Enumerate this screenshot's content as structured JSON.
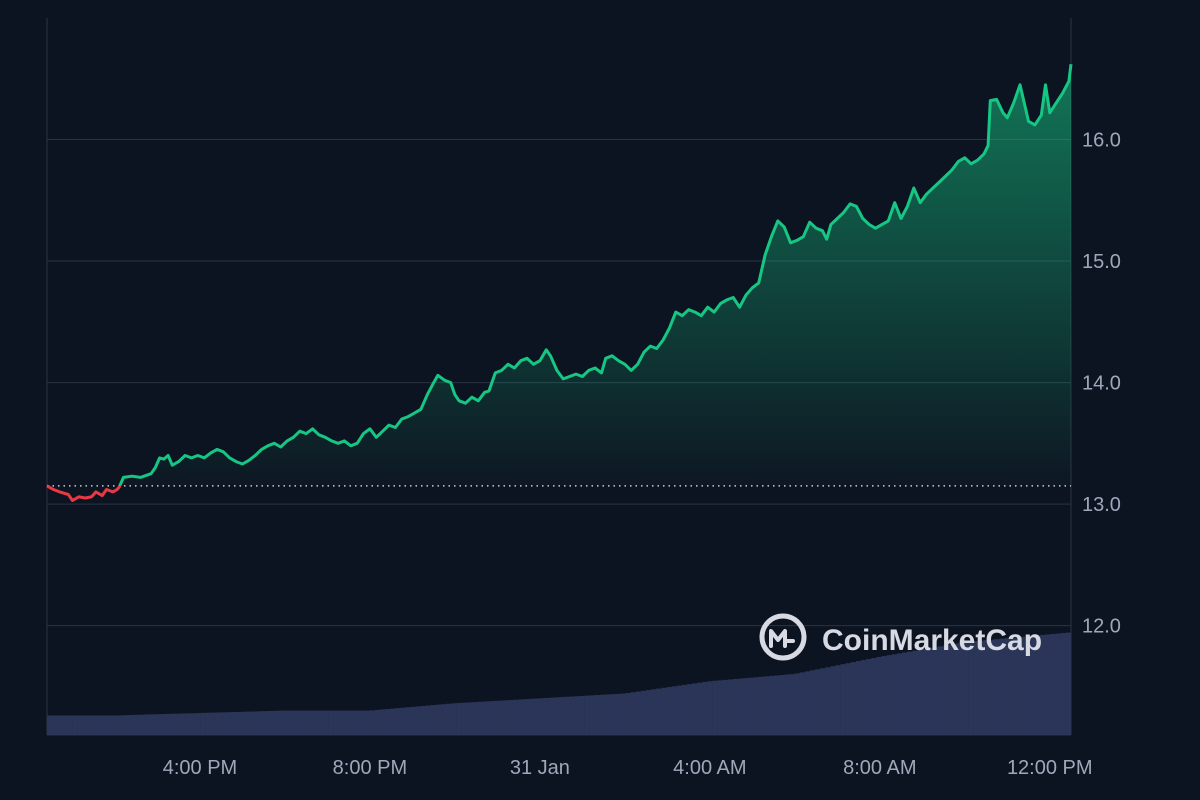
{
  "chart_data": {
    "type": "area",
    "price_axis": {
      "ticks": [
        12.0,
        13.0,
        14.0,
        15.0,
        16.0
      ],
      "tick_labels": [
        "12.0",
        "13.0",
        "14.0",
        "15.0",
        "16.0"
      ],
      "range": [
        11.1,
        17.0
      ],
      "position": "right"
    },
    "time_axis": {
      "labels": [
        "4:00 PM",
        "8:00 PM",
        "31 Jan",
        "4:00 AM",
        "8:00 AM",
        "12:00 PM"
      ],
      "label_hours": [
        4,
        8,
        12,
        16,
        20,
        24
      ],
      "range_hours": [
        0.4,
        24.5
      ]
    },
    "baseline": 13.15,
    "colors": {
      "up": "#16c784",
      "down": "#ea3943",
      "volume": "#2a3558",
      "background": "#0d1421",
      "grid": "#2b3245",
      "tick_text": "#a1a7bb"
    },
    "series": [
      {
        "values": [
          [
            0.4,
            13.15
          ],
          [
            0.55,
            13.12
          ],
          [
            0.7,
            13.1
          ],
          [
            0.9,
            13.08
          ],
          [
            1.0,
            13.03
          ],
          [
            1.15,
            13.06
          ],
          [
            1.3,
            13.05
          ],
          [
            1.45,
            13.06
          ],
          [
            1.55,
            13.1
          ],
          [
            1.7,
            13.07
          ],
          [
            1.8,
            13.12
          ],
          [
            1.95,
            13.1
          ],
          [
            2.05,
            13.12
          ],
          [
            2.1,
            13.14
          ],
          [
            2.2,
            13.22
          ],
          [
            2.4,
            13.23
          ],
          [
            2.6,
            13.22
          ],
          [
            2.85,
            13.25
          ],
          [
            2.95,
            13.3
          ],
          [
            3.05,
            13.38
          ],
          [
            3.15,
            13.37
          ],
          [
            3.25,
            13.4
          ],
          [
            3.35,
            13.32
          ],
          [
            3.5,
            13.35
          ],
          [
            3.65,
            13.4
          ],
          [
            3.8,
            13.38
          ],
          [
            3.95,
            13.4
          ],
          [
            4.1,
            13.38
          ],
          [
            4.25,
            13.42
          ],
          [
            4.4,
            13.45
          ],
          [
            4.55,
            13.43
          ],
          [
            4.7,
            13.38
          ],
          [
            4.85,
            13.35
          ],
          [
            5.0,
            13.33
          ],
          [
            5.15,
            13.36
          ],
          [
            5.3,
            13.4
          ],
          [
            5.45,
            13.45
          ],
          [
            5.6,
            13.48
          ],
          [
            5.75,
            13.5
          ],
          [
            5.9,
            13.47
          ],
          [
            6.05,
            13.52
          ],
          [
            6.2,
            13.55
          ],
          [
            6.35,
            13.6
          ],
          [
            6.5,
            13.58
          ],
          [
            6.65,
            13.62
          ],
          [
            6.8,
            13.57
          ],
          [
            6.95,
            13.55
          ],
          [
            7.1,
            13.52
          ],
          [
            7.25,
            13.5
          ],
          [
            7.4,
            13.52
          ],
          [
            7.55,
            13.48
          ],
          [
            7.7,
            13.5
          ],
          [
            7.85,
            13.58
          ],
          [
            8.0,
            13.62
          ],
          [
            8.15,
            13.55
          ],
          [
            8.3,
            13.6
          ],
          [
            8.45,
            13.65
          ],
          [
            8.6,
            13.63
          ],
          [
            8.75,
            13.7
          ],
          [
            8.9,
            13.72
          ],
          [
            9.05,
            13.75
          ],
          [
            9.2,
            13.78
          ],
          [
            9.35,
            13.9
          ],
          [
            9.5,
            14.0
          ],
          [
            9.6,
            14.06
          ],
          [
            9.75,
            14.02
          ],
          [
            9.9,
            14.0
          ],
          [
            10.0,
            13.9
          ],
          [
            10.1,
            13.85
          ],
          [
            10.25,
            13.83
          ],
          [
            10.4,
            13.88
          ],
          [
            10.55,
            13.85
          ],
          [
            10.7,
            13.92
          ],
          [
            10.8,
            13.93
          ],
          [
            10.95,
            14.08
          ],
          [
            11.1,
            14.1
          ],
          [
            11.25,
            14.15
          ],
          [
            11.4,
            14.12
          ],
          [
            11.55,
            14.18
          ],
          [
            11.7,
            14.2
          ],
          [
            11.85,
            14.15
          ],
          [
            12.0,
            14.18
          ],
          [
            12.15,
            14.27
          ],
          [
            12.25,
            14.22
          ],
          [
            12.4,
            14.1
          ],
          [
            12.55,
            14.03
          ],
          [
            12.7,
            14.05
          ],
          [
            12.85,
            14.07
          ],
          [
            13.0,
            14.05
          ],
          [
            13.15,
            14.1
          ],
          [
            13.3,
            14.12
          ],
          [
            13.45,
            14.08
          ],
          [
            13.55,
            14.2
          ],
          [
            13.7,
            14.22
          ],
          [
            13.85,
            14.18
          ],
          [
            14.0,
            14.15
          ],
          [
            14.15,
            14.1
          ],
          [
            14.3,
            14.15
          ],
          [
            14.45,
            14.25
          ],
          [
            14.6,
            14.3
          ],
          [
            14.75,
            14.28
          ],
          [
            14.9,
            14.35
          ],
          [
            15.05,
            14.45
          ],
          [
            15.2,
            14.58
          ],
          [
            15.35,
            14.55
          ],
          [
            15.5,
            14.6
          ],
          [
            15.65,
            14.58
          ],
          [
            15.8,
            14.55
          ],
          [
            15.95,
            14.62
          ],
          [
            16.1,
            14.58
          ],
          [
            16.25,
            14.65
          ],
          [
            16.4,
            14.68
          ],
          [
            16.55,
            14.7
          ],
          [
            16.7,
            14.62
          ],
          [
            16.85,
            14.72
          ],
          [
            17.0,
            14.78
          ],
          [
            17.15,
            14.82
          ],
          [
            17.3,
            15.05
          ],
          [
            17.45,
            15.2
          ],
          [
            17.6,
            15.33
          ],
          [
            17.75,
            15.28
          ],
          [
            17.9,
            15.15
          ],
          [
            18.05,
            15.17
          ],
          [
            18.2,
            15.2
          ],
          [
            18.35,
            15.32
          ],
          [
            18.5,
            15.27
          ],
          [
            18.65,
            15.25
          ],
          [
            18.75,
            15.18
          ],
          [
            18.85,
            15.3
          ],
          [
            19.0,
            15.35
          ],
          [
            19.15,
            15.4
          ],
          [
            19.3,
            15.47
          ],
          [
            19.45,
            15.45
          ],
          [
            19.6,
            15.35
          ],
          [
            19.75,
            15.3
          ],
          [
            19.9,
            15.27
          ],
          [
            20.05,
            15.3
          ],
          [
            20.2,
            15.33
          ],
          [
            20.35,
            15.48
          ],
          [
            20.5,
            15.35
          ],
          [
            20.65,
            15.45
          ],
          [
            20.8,
            15.6
          ],
          [
            20.95,
            15.48
          ],
          [
            21.1,
            15.55
          ],
          [
            21.25,
            15.6
          ],
          [
            21.4,
            15.65
          ],
          [
            21.55,
            15.7
          ],
          [
            21.7,
            15.75
          ],
          [
            21.85,
            15.82
          ],
          [
            22.0,
            15.85
          ],
          [
            22.15,
            15.8
          ],
          [
            22.3,
            15.83
          ],
          [
            22.45,
            15.88
          ],
          [
            22.55,
            15.95
          ],
          [
            22.6,
            16.32
          ],
          [
            22.75,
            16.33
          ],
          [
            22.9,
            16.22
          ],
          [
            23.0,
            16.18
          ],
          [
            23.15,
            16.3
          ],
          [
            23.3,
            16.45
          ],
          [
            23.4,
            16.3
          ],
          [
            23.5,
            16.15
          ],
          [
            23.65,
            16.12
          ],
          [
            23.8,
            16.2
          ],
          [
            23.9,
            16.45
          ],
          [
            24.0,
            16.22
          ],
          [
            24.15,
            16.3
          ],
          [
            24.3,
            16.38
          ],
          [
            24.45,
            16.48
          ],
          [
            24.5,
            16.62
          ]
        ]
      }
    ],
    "volume": [
      [
        0.4,
        0.08
      ],
      [
        2.0,
        0.08
      ],
      [
        4.0,
        0.09
      ],
      [
        6.0,
        0.1
      ],
      [
        8.0,
        0.1
      ],
      [
        10.0,
        0.13
      ],
      [
        12.0,
        0.15
      ],
      [
        14.0,
        0.17
      ],
      [
        16.0,
        0.22
      ],
      [
        18.0,
        0.25
      ],
      [
        20.0,
        0.32
      ],
      [
        22.0,
        0.38
      ],
      [
        24.5,
        0.42
      ]
    ],
    "volume_max": 0.45,
    "grid": true,
    "legend": "none"
  },
  "watermark": {
    "text": "CoinMarketCap",
    "icon": "coinmarketcap-logo-icon"
  }
}
